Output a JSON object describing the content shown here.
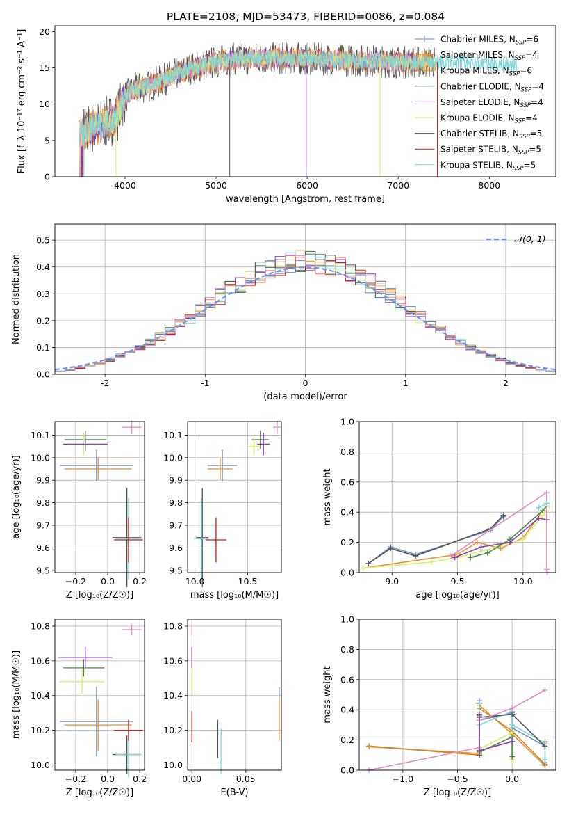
{
  "title": "PLATE=2108, MJD=53473, FIBERID=0086, z=0.084",
  "colors": {
    "chabrier_miles": "#6e90c0",
    "salpeter_miles": "#f08b2d",
    "kroupa_miles": "#bf8a28",
    "chabrier_elodie": "#4b8a4b",
    "salpeter_elodie": "#8c3fb5",
    "kroupa_elodie": "#e7e36a",
    "chabrier_stelib": "#555555",
    "salpeter_stelib": "#c22020",
    "kroupa_stelib": "#7fd6d6",
    "normal_curve": "#6495ed",
    "pink": "#e58ac0",
    "lime": "#d7f06a",
    "green": "#5f8a6f"
  },
  "chart_data": [
    {
      "id": "spectrum",
      "type": "line",
      "xlabel": "wavelength [Angstrom, rest frame]",
      "ylabel": "Flux [f_λ 10⁻¹⁷ erg cm⁻² s⁻¹ A⁻¹]",
      "xlim": [
        3230,
        8730
      ],
      "ylim": [
        0,
        20.8
      ],
      "xticks": [
        4000,
        5000,
        6000,
        7000,
        8000
      ],
      "yticks": [
        0,
        5,
        10,
        15,
        20
      ],
      "continuum": {
        "x": [
          3500,
          3700,
          3900,
          4000,
          4100,
          4300,
          4500,
          4700,
          5000,
          5200,
          5500,
          6000,
          6500,
          7000,
          7400,
          7700,
          8000,
          8300
        ],
        "y": [
          6.0,
          7.0,
          8.0,
          11.0,
          12.0,
          12.7,
          13.8,
          14.8,
          15.8,
          16.2,
          16.3,
          16.3,
          16.0,
          15.8,
          15.8,
          15.8,
          15.6,
          15.4
        ]
      },
      "legend": [
        {
          "base": "Chabrier MILES",
          "sup": "SSP",
          "n": "6",
          "color_key": "chabrier_miles",
          "marker": "+"
        },
        {
          "base": "Salpeter MILES",
          "sup": "SSP",
          "n": "4",
          "color_key": "salpeter_miles",
          "marker": "+"
        },
        {
          "base": "Kroupa MILES",
          "sup": "SSP",
          "n": "6",
          "color_key": "kroupa_miles",
          "marker": "+"
        },
        {
          "base": "Chabrier ELODIE",
          "sup": "SSP",
          "n": "4",
          "color_key": "chabrier_elodie",
          "marker": ""
        },
        {
          "base": "Salpeter ELODIE",
          "sup": "SSP",
          "n": "4",
          "color_key": "salpeter_elodie",
          "marker": ""
        },
        {
          "base": "Kroupa ELODIE",
          "sup": "SSP",
          "n": "4",
          "color_key": "kroupa_elodie",
          "marker": ""
        },
        {
          "base": "Chabrier STELIB",
          "sup": "SSP",
          "n": "5",
          "color_key": "chabrier_stelib",
          "marker": ""
        },
        {
          "base": "Salpeter STELIB",
          "sup": "SSP",
          "n": "5",
          "color_key": "salpeter_stelib",
          "marker": ""
        },
        {
          "base": "Kroupa STELIB",
          "sup": "SSP",
          "n": "5",
          "color_key": "kroupa_stelib",
          "marker": ""
        }
      ]
    },
    {
      "id": "residuals",
      "type": "step",
      "xlabel": "(data-model)/error",
      "ylabel": "Normed distribution",
      "xlim": [
        -2.5,
        2.5
      ],
      "ylim": [
        0,
        0.56
      ],
      "xticks": [
        -2,
        -1,
        0,
        1,
        2
      ],
      "yticks": [
        0.0,
        0.1,
        0.2,
        0.3,
        0.4,
        0.5
      ],
      "bin_width": 0.1,
      "legend": "𝒩(0, 1)",
      "grid": true
    },
    {
      "id": "age_vs_Z",
      "type": "errorbar",
      "xlabel": "Z [log₁₀(Z/Z☉)]",
      "ylabel": "age  [log₁₀(age/yr)]",
      "xlim": [
        -0.33,
        0.23
      ],
      "ylim": [
        9.49,
        10.16
      ],
      "xticks": [
        -0.2,
        0.0,
        0.2
      ],
      "yticks": [
        9.5,
        9.6,
        9.7,
        9.8,
        9.9,
        10.0,
        10.1
      ],
      "xtick_labels": [
        "−0.2",
        "0.0",
        "0.2"
      ],
      "points": [
        {
          "x": -0.14,
          "xerr": 0.13,
          "y": 10.08,
          "yerr": 0.04,
          "c": "chabrier_elodie"
        },
        {
          "x": -0.15,
          "xerr": 0.13,
          "y": 10.06,
          "yerr": 0.05,
          "c": "lime"
        },
        {
          "x": -0.14,
          "xerr": 0.14,
          "y": 10.06,
          "yerr": 0.03,
          "c": "salpeter_elodie"
        },
        {
          "x": -0.07,
          "xerr": 0.23,
          "y": 9.965,
          "yerr": 0.07,
          "c": "chabrier_miles"
        },
        {
          "x": -0.06,
          "xerr": 0.21,
          "y": 9.95,
          "yerr": 0.05,
          "c": "salpeter_miles"
        },
        {
          "x": 0.15,
          "xerr": 0.06,
          "y": 10.135,
          "yerr": 0.03,
          "c": "pink"
        },
        {
          "x": 0.12,
          "xerr": 0.09,
          "y": 9.645,
          "yerr": 0.22,
          "c": "chabrier_stelib"
        },
        {
          "x": 0.13,
          "xerr": 0.08,
          "y": 9.64,
          "yerr": 0.18,
          "c": "kroupa_stelib"
        },
        {
          "x": 0.13,
          "xerr": 0.09,
          "y": 9.635,
          "yerr": 0.1,
          "c": "salpeter_stelib"
        }
      ]
    },
    {
      "id": "age_vs_mass",
      "type": "errorbar",
      "xlabel": "mass [log₁₀(M/M☉)]",
      "xlim": [
        9.93,
        10.82
      ],
      "ylim": [
        9.49,
        10.16
      ],
      "xticks": [
        10.0,
        10.5
      ],
      "yticks": [
        9.5,
        9.6,
        9.7,
        9.8,
        9.9,
        10.0,
        10.1
      ],
      "points": [
        {
          "x": 10.62,
          "xerr": 0.08,
          "y": 10.08,
          "yerr": 0.04,
          "c": "green"
        },
        {
          "x": 10.56,
          "xerr": 0.07,
          "y": 10.05,
          "yerr": 0.04,
          "c": "lime"
        },
        {
          "x": 10.65,
          "xerr": 0.06,
          "y": 10.06,
          "yerr": 0.05,
          "c": "salpeter_elodie"
        },
        {
          "x": 10.26,
          "xerr": 0.14,
          "y": 9.965,
          "yerr": 0.07,
          "c": "chabrier_miles"
        },
        {
          "x": 10.24,
          "xerr": 0.12,
          "y": 9.95,
          "yerr": 0.05,
          "c": "salpeter_miles"
        },
        {
          "x": 10.78,
          "xerr": 0.04,
          "y": 10.135,
          "yerr": 0.03,
          "c": "pink"
        },
        {
          "x": 10.07,
          "xerr": 0.06,
          "y": 9.645,
          "yerr": 0.22,
          "c": "chabrier_stelib"
        },
        {
          "x": 10.06,
          "xerr": 0.07,
          "y": 9.64,
          "yerr": 0.18,
          "c": "kroupa_stelib"
        },
        {
          "x": 10.2,
          "xerr": 0.1,
          "y": 9.635,
          "yerr": 0.1,
          "c": "salpeter_stelib"
        }
      ]
    },
    {
      "id": "weight_vs_age",
      "type": "line",
      "xlabel": "age  [log₁₀(age/yr)]",
      "ylabel": "mass weight",
      "xlim": [
        8.75,
        10.25
      ],
      "ylim": [
        0,
        1
      ],
      "xticks": [
        9.0,
        9.5,
        10.0
      ],
      "yticks": [
        0.0,
        0.2,
        0.4,
        0.6,
        0.8,
        1.0
      ],
      "series": [
        {
          "c": "chabrier_miles",
          "x": [
            8.82,
            8.99,
            9.18,
            9.75,
            9.85
          ],
          "y": [
            0.06,
            0.17,
            0.12,
            0.28,
            0.37
          ]
        },
        {
          "c": "chabrier_stelib",
          "x": [
            8.82,
            8.99,
            9.18,
            9.75,
            9.85
          ],
          "y": [
            0.06,
            0.16,
            0.11,
            0.29,
            0.38
          ]
        },
        {
          "c": "salpeter_miles",
          "x": [
            8.78,
            9.5,
            9.65,
            9.83,
            10.0,
            10.15,
            10.18
          ],
          "y": [
            0.03,
            0.12,
            0.2,
            0.16,
            0.23,
            0.41,
            0.44
          ]
        },
        {
          "c": "lime",
          "x": [
            8.78,
            9.3,
            9.5,
            9.8,
            10.0,
            10.15,
            10.18
          ],
          "y": [
            0.03,
            0.07,
            0.1,
            0.17,
            0.22,
            0.38,
            0.41
          ]
        },
        {
          "c": "chabrier_elodie",
          "x": [
            9.6,
            9.73,
            9.9,
            10.15,
            10.18
          ],
          "y": [
            0.1,
            0.13,
            0.22,
            0.41,
            0.44
          ]
        },
        {
          "c": "salpeter_elodie",
          "x": [
            9.48,
            9.68,
            9.9,
            10.12,
            10.18
          ],
          "y": [
            0.1,
            0.17,
            0.2,
            0.36,
            0.35
          ]
        },
        {
          "c": "pink",
          "x": [
            9.45,
            10.18,
            10.18,
            10.185
          ],
          "y": [
            0.11,
            0.53,
            0.02,
            0.0
          ]
        },
        {
          "c": "kroupa_stelib",
          "x": [
            10.12,
            10.18
          ],
          "y": [
            0.43,
            0.46
          ]
        }
      ]
    },
    {
      "id": "mass_vs_Z",
      "type": "errorbar",
      "xlabel": "Z [log₁₀(Z/Z☉)]",
      "ylabel": "mass [log₁₀(M/M☉)]",
      "xlim": [
        -0.33,
        0.23
      ],
      "ylim": [
        9.97,
        10.84
      ],
      "xticks": [
        -0.2,
        0.0,
        0.2
      ],
      "yticks": [
        10.0,
        10.2,
        10.4,
        10.6,
        10.8
      ],
      "xtick_labels": [
        "−0.2",
        "0.0",
        "0.2"
      ],
      "points": [
        {
          "x": -0.14,
          "xerr": 0.17,
          "y": 10.62,
          "yerr": 0.06,
          "c": "salpeter_elodie"
        },
        {
          "x": -0.15,
          "xerr": 0.13,
          "y": 10.56,
          "yerr": 0.05,
          "c": "chabrier_elodie"
        },
        {
          "x": -0.16,
          "xerr": 0.14,
          "y": 10.48,
          "yerr": 0.07,
          "c": "lime"
        },
        {
          "x": -0.07,
          "xerr": 0.23,
          "y": 10.25,
          "yerr": 0.2,
          "c": "chabrier_miles"
        },
        {
          "x": -0.06,
          "xerr": 0.21,
          "y": 10.23,
          "yerr": 0.15,
          "c": "salpeter_miles"
        },
        {
          "x": 0.15,
          "xerr": 0.06,
          "y": 10.78,
          "yerr": 0.03,
          "c": "pink"
        },
        {
          "x": 0.12,
          "xerr": 0.09,
          "y": 10.06,
          "yerr": 0.11,
          "c": "chabrier_stelib"
        },
        {
          "x": 0.13,
          "xerr": 0.08,
          "y": 10.06,
          "yerr": 0.13,
          "c": "kroupa_stelib"
        },
        {
          "x": 0.13,
          "xerr": 0.09,
          "y": 10.2,
          "yerr": 0.06,
          "c": "salpeter_stelib"
        }
      ]
    },
    {
      "id": "mass_vs_ebv",
      "type": "errorbar",
      "xlabel": "E(B-V)",
      "xlim": [
        -0.004,
        0.083
      ],
      "ylim": [
        9.97,
        10.84
      ],
      "xticks": [
        0.0,
        0.05
      ],
      "yticks": [
        10.0,
        10.2,
        10.4,
        10.6,
        10.8
      ],
      "xtick_labels": [
        "0.00",
        "0.05"
      ],
      "points": [
        {
          "x": 0.0,
          "y": 10.78,
          "yerr": 0.03,
          "c": "pink"
        },
        {
          "x": 0.0,
          "y": 10.62,
          "yerr": 0.06,
          "c": "salpeter_elodie"
        },
        {
          "x": 0.0,
          "y": 10.48,
          "yerr": 0.07,
          "c": "lime"
        },
        {
          "x": 0.0,
          "y": 10.22,
          "yerr": 0.09,
          "c": "salpeter_stelib"
        },
        {
          "x": 0.024,
          "y": 10.15,
          "yerr": 0.11,
          "c": "chabrier_stelib"
        },
        {
          "x": 0.027,
          "y": 10.08,
          "yerr": 0.13,
          "c": "kroupa_stelib"
        },
        {
          "x": 0.081,
          "y": 10.32,
          "yerr": 0.13,
          "c": "chabrier_miles"
        },
        {
          "x": 0.081,
          "y": 10.26,
          "yerr": 0.12,
          "c": "salpeter_miles"
        }
      ]
    },
    {
      "id": "weight_vs_Z",
      "type": "line",
      "xlabel": "Z [log₁₀(Z/Z☉)]",
      "ylabel": "mass weight",
      "xlim": [
        -1.4,
        0.4
      ],
      "ylim": [
        0,
        1
      ],
      "xticks": [
        -1.0,
        -0.5,
        0.0
      ],
      "yticks": [
        0.0,
        0.2,
        0.4,
        0.6,
        0.8,
        1.0
      ],
      "xtick_labels": [
        "−1.0",
        "−0.5",
        "0.0"
      ],
      "series": [
        {
          "c": "salpeter_miles",
          "x": [
            -1.31,
            -0.3,
            -0.3,
            0.0,
            0.3,
            0.3
          ],
          "y": [
            0.155,
            0.11,
            0.43,
            0.24,
            0.03,
            0.19
          ]
        },
        {
          "c": "kroupa_miles",
          "x": [
            -1.31,
            -0.3,
            -0.3,
            0.0,
            0.3,
            0.3
          ],
          "y": [
            0.16,
            0.1,
            0.41,
            0.26,
            0.04,
            0.18
          ]
        },
        {
          "c": "chabrier_miles",
          "x": [
            -0.3,
            -0.3,
            0.0,
            0.0,
            0.3,
            0.3
          ],
          "y": [
            0.46,
            0.33,
            0.38,
            0.28,
            0.16,
            0.05
          ]
        },
        {
          "c": "kroupa_stelib",
          "x": [
            -0.3,
            -0.3,
            0.0,
            0.0,
            0.3,
            0.3
          ],
          "y": [
            0.44,
            0.3,
            0.39,
            0.3,
            0.18,
            0.07
          ]
        },
        {
          "c": "chabrier_stelib",
          "x": [
            -0.3,
            -0.3,
            0.0,
            0.3
          ],
          "y": [
            0.1,
            0.35,
            0.37,
            0.16
          ]
        },
        {
          "c": "lime",
          "x": [
            -0.3,
            -0.3,
            0.0,
            0.0
          ],
          "y": [
            0.38,
            0.14,
            0.25,
            0.07
          ]
        },
        {
          "c": "pink",
          "x": [
            -1.31,
            -0.3,
            -0.3,
            0.0,
            0.3
          ],
          "y": [
            0.0,
            0.15,
            0.33,
            0.41,
            0.53
          ]
        },
        {
          "c": "chabrier_elodie",
          "x": [
            -0.3,
            -0.3,
            0.0,
            0.0
          ],
          "y": [
            0.36,
            0.12,
            0.22,
            0.09
          ]
        },
        {
          "c": "salpeter_elodie",
          "x": [
            -0.3,
            -0.3,
            0.0
          ],
          "y": [
            0.37,
            0.13,
            0.19
          ]
        }
      ]
    }
  ]
}
